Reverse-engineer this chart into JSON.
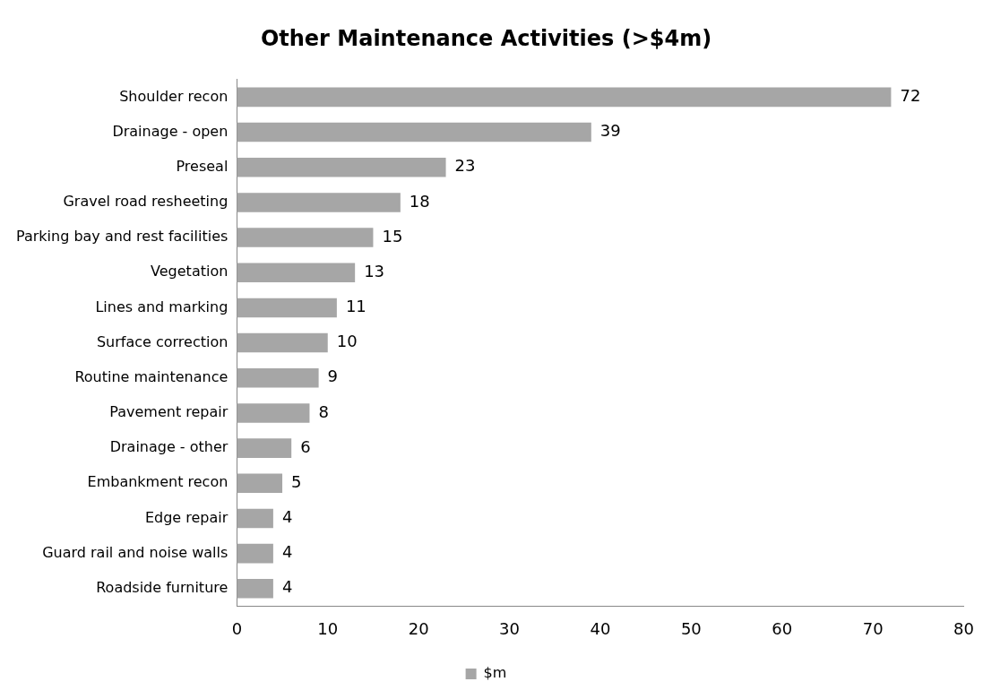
{
  "chart_data": {
    "type": "bar",
    "orientation": "horizontal",
    "title": "Other Maintenance Activities (>$4m)",
    "categories": [
      "Shoulder recon",
      "Drainage - open",
      "Preseal",
      "Gravel road resheeting",
      "Parking bay and rest facilities",
      "Vegetation",
      "Lines and marking",
      "Surface correction",
      "Routine maintenance",
      "Pavement repair",
      "Drainage - other",
      "Embankment recon",
      "Edge repair",
      "Guard rail and noise walls",
      "Roadside furniture"
    ],
    "series": [
      {
        "name": "$m",
        "color": "#a6a6a6",
        "values": [
          72,
          39,
          23,
          18,
          15,
          13,
          11,
          10,
          9,
          8,
          6,
          5,
          4,
          4,
          4
        ]
      }
    ],
    "xlim": [
      0,
      80
    ],
    "xticks": [
      0,
      10,
      20,
      30,
      40,
      50,
      60,
      70,
      80
    ],
    "grid": false,
    "legend": "bottom",
    "data_labels": true
  }
}
